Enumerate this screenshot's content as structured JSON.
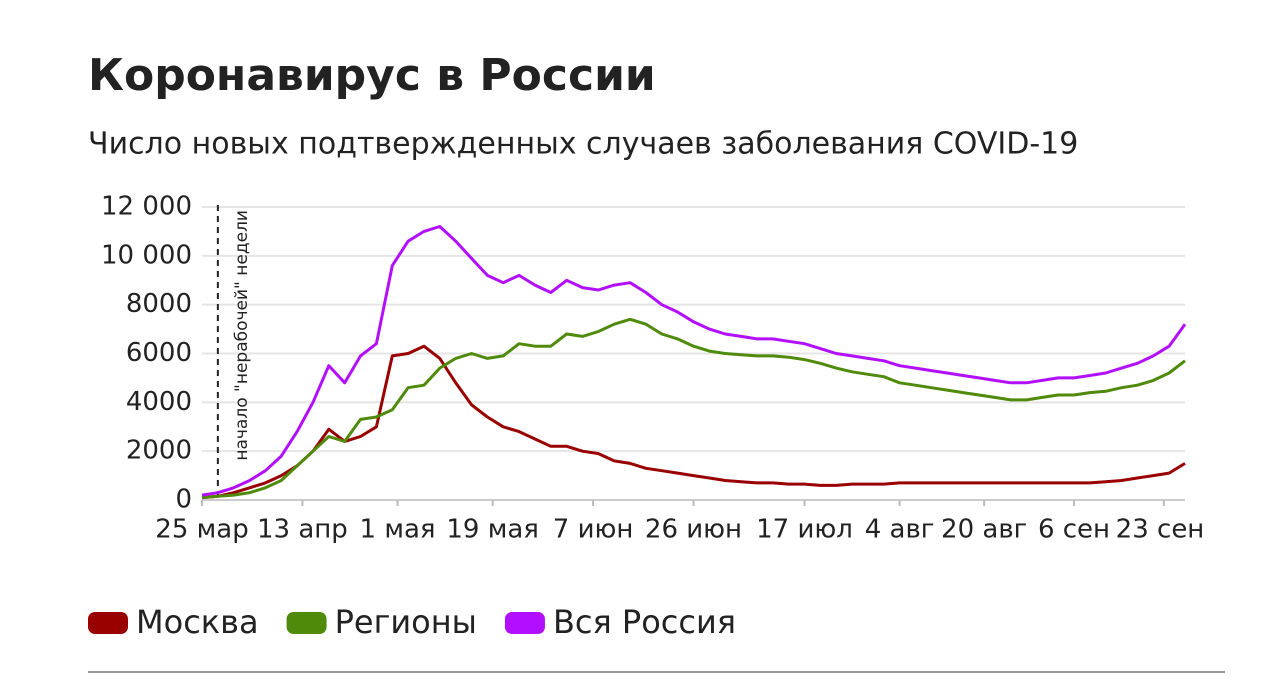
{
  "chart_data": {
    "type": "line",
    "title": "Коронавирус в России",
    "subtitle": "Число новых подтвержденных случаев заболевания COVID-19",
    "annotation": {
      "text": "начало \"нерабочей\" недели",
      "x": 3
    },
    "x": [
      0,
      3,
      6,
      9,
      12,
      15,
      18,
      21,
      24,
      27,
      30,
      33,
      36,
      39,
      42,
      45,
      48,
      51,
      54,
      57,
      60,
      63,
      66,
      69,
      72,
      75,
      78,
      81,
      84,
      87,
      90,
      93,
      96,
      99,
      102,
      105,
      108,
      111,
      114,
      117,
      120,
      123,
      126,
      129,
      132,
      135,
      138,
      141,
      144,
      147,
      150,
      153,
      156,
      159,
      162,
      165,
      168,
      171,
      174,
      177,
      180,
      183,
      186
    ],
    "xlim": [
      0,
      186
    ],
    "xticks": [
      {
        "value": 0,
        "label": "25 мар"
      },
      {
        "value": 19,
        "label": "13 апр"
      },
      {
        "value": 37,
        "label": "1 мая"
      },
      {
        "value": 55,
        "label": "19 мая"
      },
      {
        "value": 74,
        "label": "7 июн"
      },
      {
        "value": 93,
        "label": "26 июн"
      },
      {
        "value": 114,
        "label": "17 июл"
      },
      {
        "value": 132,
        "label": "4 авг"
      },
      {
        "value": 148,
        "label": "20 авг"
      },
      {
        "value": 165,
        "label": "6 сен"
      },
      {
        "value": 182,
        "label": "23 сен"
      }
    ],
    "ylim": [
      0,
      12000
    ],
    "yticks": [
      0,
      2000,
      4000,
      6000,
      8000,
      {
        "value": 10000,
        "label": "10 000"
      },
      {
        "value": 12000,
        "label": "12 000"
      }
    ],
    "grid": true,
    "series": [
      {
        "name": "Москва",
        "color": "#990000",
        "values": [
          100,
          150,
          300,
          500,
          700,
          1000,
          1400,
          2000,
          2900,
          2400,
          2600,
          3000,
          5900,
          6000,
          6300,
          5800,
          4800,
          3900,
          3400,
          3000,
          2800,
          2500,
          2200,
          2200,
          2000,
          1900,
          1600,
          1500,
          1300,
          1200,
          1100,
          1000,
          900,
          800,
          750,
          700,
          700,
          650,
          650,
          600,
          600,
          650,
          650,
          650,
          700,
          700,
          700,
          700,
          700,
          700,
          700,
          700,
          700,
          700,
          700,
          700,
          700,
          750,
          800,
          900,
          1000,
          1100,
          1500
        ]
      },
      {
        "name": "Регионы",
        "color": "#4f8a0b",
        "values": [
          100,
          150,
          200,
          300,
          500,
          800,
          1400,
          2000,
          2600,
          2400,
          3300,
          3400,
          3700,
          4600,
          4700,
          5400,
          5800,
          6000,
          5800,
          5900,
          6400,
          6300,
          6300,
          6800,
          6700,
          6900,
          7200,
          7400,
          7200,
          6800,
          6600,
          6300,
          6100,
          6000,
          5950,
          5900,
          5900,
          5850,
          5750,
          5600,
          5400,
          5250,
          5150,
          5050,
          4800,
          4700,
          4600,
          4500,
          4400,
          4300,
          4200,
          4100,
          4100,
          4200,
          4300,
          4300,
          4400,
          4450,
          4600,
          4700,
          4900,
          5200,
          5700
        ]
      },
      {
        "name": "Вся Россия",
        "color": "#b30fff",
        "values": [
          200,
          300,
          500,
          800,
          1200,
          1800,
          2800,
          4000,
          5500,
          4800,
          5900,
          6400,
          9600,
          10600,
          11000,
          11200,
          10600,
          9900,
          9200,
          8900,
          9200,
          8800,
          8500,
          9000,
          8700,
          8600,
          8800,
          8900,
          8500,
          8000,
          7700,
          7300,
          7000,
          6800,
          6700,
          6600,
          6600,
          6500,
          6400,
          6200,
          6000,
          5900,
          5800,
          5700,
          5500,
          5400,
          5300,
          5200,
          5100,
          5000,
          4900,
          4800,
          4800,
          4900,
          5000,
          5000,
          5100,
          5200,
          5400,
          5600,
          5900,
          6300,
          7200
        ]
      }
    ]
  }
}
